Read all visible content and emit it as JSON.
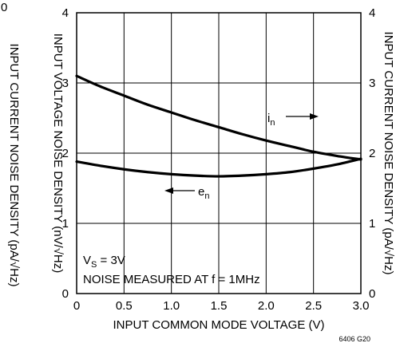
{
  "chart_data": {
    "type": "line",
    "x": [
      0,
      0.25,
      0.5,
      0.75,
      1.0,
      1.25,
      1.5,
      1.75,
      2.0,
      2.25,
      2.5,
      2.75,
      3.0
    ],
    "series": [
      {
        "name": "i",
        "name_sub": "n",
        "axis": "right",
        "values": [
          3.1,
          2.95,
          2.82,
          2.69,
          2.58,
          2.47,
          2.37,
          2.27,
          2.18,
          2.1,
          2.02,
          1.96,
          1.91
        ],
        "color": "#000000"
      },
      {
        "name": "e",
        "name_sub": "n",
        "axis": "left",
        "values": [
          1.88,
          1.82,
          1.77,
          1.73,
          1.7,
          1.68,
          1.67,
          1.68,
          1.7,
          1.73,
          1.78,
          1.84,
          1.92
        ],
        "color": "#000000"
      }
    ],
    "xlim": [
      0,
      3.0
    ],
    "ylim": [
      0,
      4
    ],
    "x_ticks": [
      "0",
      "0.5",
      "1.0",
      "1.5",
      "2.0",
      "2.5",
      "3.0"
    ],
    "x_tick_values": [
      0,
      0.5,
      1.0,
      1.5,
      2.0,
      2.5,
      3.0
    ],
    "y_ticks": [
      "0",
      "1",
      "2",
      "3",
      "4"
    ],
    "y_tick_values": [
      0,
      1,
      2,
      3,
      4
    ],
    "xlabel": "INPUT COMMON MODE VOLTAGE (V)",
    "ylabel_left": "INPUT VOLTAGE NOISE DENSITY (nV/√Hz)",
    "ylabel_right": "INPUT CURRENT NOISE DENSITY (pA/√Hz)",
    "ylabel_far_left": "INPUT CURRENT NOISE DENSITY (pA/√Hz)",
    "far_left_tick": "0",
    "annotations": {
      "vs_main": "V",
      "vs_sub": "S",
      "vs_value": " = 3V",
      "noise": "NOISE MEASURED AT f = 1MHz"
    },
    "figure_id": "6406 G20",
    "grid": true
  }
}
